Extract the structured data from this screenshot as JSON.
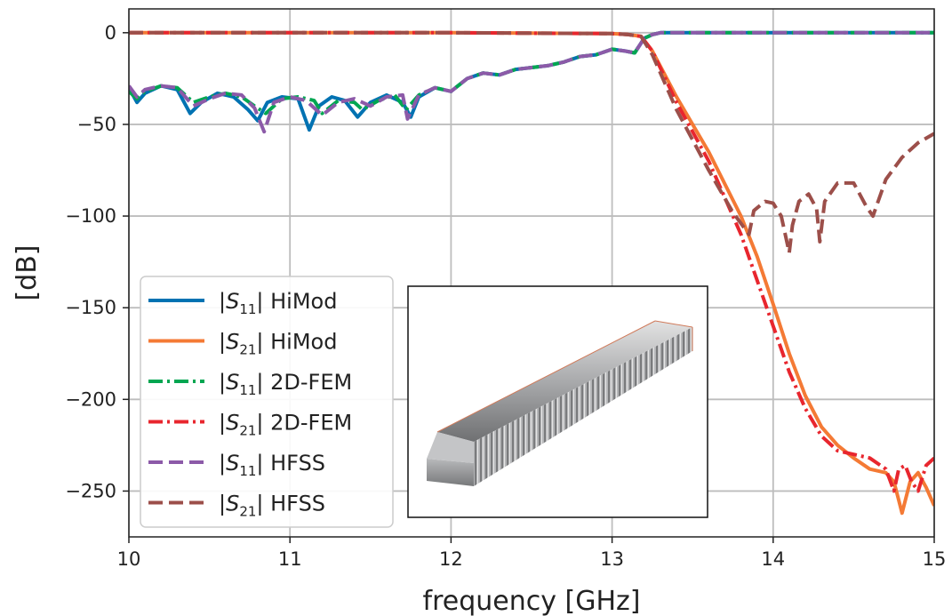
{
  "chart_data": {
    "type": "line",
    "xlabel": "frequency [GHz]",
    "ylabel": "[dB]",
    "xlim": [
      10,
      15
    ],
    "ylim": [
      -275,
      13
    ],
    "xticks": [
      10,
      11,
      12,
      13,
      14,
      15
    ],
    "yticks": [
      0,
      -50,
      -100,
      -150,
      -200,
      -250
    ],
    "ytick_labels": [
      "0",
      "−50",
      "−100",
      "−150",
      "−200",
      "−250"
    ],
    "grid": true,
    "legend_position": "lower-left",
    "series": [
      {
        "name": "|S11| HiMod",
        "legend_main": "|S",
        "legend_sub": "11",
        "legend_tail": "| HiMod",
        "color": "#0072b2",
        "style": "solid",
        "x": [
          10.0,
          10.05,
          10.1,
          10.2,
          10.3,
          10.38,
          10.45,
          10.55,
          10.65,
          10.74,
          10.8,
          10.86,
          10.95,
          11.05,
          11.12,
          11.18,
          11.26,
          11.34,
          11.42,
          11.5,
          11.6,
          11.7,
          11.75,
          11.8,
          11.9,
          12.0,
          12.1,
          12.2,
          12.3,
          12.4,
          12.5,
          12.6,
          12.7,
          12.8,
          12.9,
          13.0,
          13.08,
          13.14,
          13.2,
          13.25,
          13.3,
          13.5,
          14.0,
          14.5,
          15.0
        ],
        "y": [
          -30,
          -38,
          -33,
          -29,
          -31,
          -44,
          -38,
          -33,
          -35,
          -42,
          -48,
          -38,
          -35,
          -36,
          -53,
          -40,
          -35,
          -37,
          -46,
          -38,
          -34,
          -38,
          -46,
          -35,
          -30,
          -32,
          -25,
          -22,
          -23,
          -20,
          -19,
          -18,
          -16,
          -13,
          -12,
          -9,
          -10,
          -11,
          -3,
          -1,
          0,
          0,
          0,
          0,
          0
        ]
      },
      {
        "name": "|S21| HiMod",
        "legend_main": "|S",
        "legend_sub": "21",
        "legend_tail": "| HiMod",
        "color": "#f47a35",
        "style": "solid",
        "x": [
          10.0,
          12.0,
          13.0,
          13.1,
          13.18,
          13.25,
          13.4,
          13.6,
          13.8,
          13.9,
          14.0,
          14.1,
          14.2,
          14.3,
          14.4,
          14.5,
          14.6,
          14.7,
          14.75,
          14.78,
          14.8,
          14.85,
          14.9,
          14.95,
          15.0
        ],
        "y": [
          0,
          0,
          -0.5,
          -1,
          -2,
          -10,
          -35,
          -65,
          -100,
          -122,
          -148,
          -175,
          -198,
          -215,
          -225,
          -232,
          -238,
          -240,
          -245,
          -255,
          -262,
          -245,
          -240,
          -248,
          -258
        ]
      },
      {
        "name": "|S11| 2D-FEM",
        "legend_main": "|S",
        "legend_sub": "11",
        "legend_tail": "| 2D-FEM",
        "color": "#00a651",
        "style": "dashdot",
        "x": [
          10.0,
          10.05,
          10.1,
          10.2,
          10.3,
          10.4,
          10.5,
          10.6,
          10.7,
          10.78,
          10.85,
          10.95,
          11.05,
          11.15,
          11.2,
          11.3,
          11.4,
          11.45,
          11.55,
          11.65,
          11.72,
          11.8,
          11.9,
          12.0,
          12.1,
          12.2,
          12.3,
          12.4,
          12.5,
          12.6,
          12.7,
          12.8,
          12.9,
          13.0,
          13.08,
          13.14,
          13.2,
          13.25,
          13.3,
          13.5,
          14.0,
          14.5,
          15.0
        ],
        "y": [
          -32,
          -36,
          -32,
          -29,
          -30,
          -38,
          -35,
          -33,
          -35,
          -40,
          -44,
          -36,
          -35,
          -37,
          -44,
          -37,
          -38,
          -42,
          -37,
          -34,
          -42,
          -34,
          -30,
          -32,
          -25,
          -22,
          -23,
          -20,
          -19,
          -18,
          -16,
          -13,
          -12,
          -9,
          -10,
          -11,
          -3,
          -1,
          0,
          0,
          0,
          0,
          0
        ]
      },
      {
        "name": "|S21| 2D-FEM",
        "legend_main": "|S",
        "legend_sub": "21",
        "legend_tail": "| 2D-FEM",
        "color": "#e8262e",
        "style": "dashdot",
        "x": [
          10.0,
          12.0,
          13.0,
          13.1,
          13.18,
          13.25,
          13.4,
          13.6,
          13.8,
          13.9,
          14.0,
          14.1,
          14.2,
          14.3,
          14.4,
          14.5,
          14.6,
          14.7,
          14.75,
          14.78,
          14.82,
          14.86,
          14.9,
          14.95,
          15.0
        ],
        "y": [
          0,
          0,
          -0.5,
          -1,
          -2,
          -10,
          -38,
          -70,
          -110,
          -135,
          -160,
          -185,
          -205,
          -220,
          -228,
          -230,
          -232,
          -238,
          -250,
          -238,
          -236,
          -245,
          -250,
          -236,
          -232
        ]
      },
      {
        "name": "|S11| HFSS",
        "legend_main": "|S",
        "legend_sub": "11",
        "legend_tail": "| HFSS",
        "color": "#8c5aa8",
        "style": "dashed",
        "x": [
          10.0,
          10.05,
          10.1,
          10.2,
          10.3,
          10.4,
          10.5,
          10.6,
          10.7,
          10.78,
          10.84,
          10.9,
          11.0,
          11.1,
          11.2,
          11.3,
          11.4,
          11.5,
          11.6,
          11.7,
          11.73,
          11.8,
          11.9,
          12.0,
          12.1,
          12.2,
          12.3,
          12.4,
          12.5,
          12.6,
          12.7,
          12.8,
          12.9,
          13.0,
          13.08,
          13.14,
          13.2,
          13.25,
          13.3,
          13.5,
          14.0,
          14.5,
          15.0
        ],
        "y": [
          -29,
          -35,
          -31,
          -29,
          -30,
          -40,
          -36,
          -33,
          -34,
          -41,
          -54,
          -38,
          -35,
          -37,
          -45,
          -38,
          -36,
          -40,
          -35,
          -34,
          -47,
          -34,
          -30,
          -32,
          -25,
          -22,
          -23,
          -20,
          -19,
          -18,
          -16,
          -13,
          -12,
          -9,
          -10,
          -11,
          -3,
          -1,
          0,
          0,
          0,
          0,
          0
        ]
      },
      {
        "name": "|S21| HFSS",
        "legend_main": "|S",
        "legend_sub": "21",
        "legend_tail": "| HFSS",
        "color": "#9c4f4a",
        "style": "dashed",
        "x": [
          10.0,
          12.0,
          13.0,
          13.1,
          13.18,
          13.25,
          13.4,
          13.6,
          13.75,
          13.85,
          13.88,
          13.95,
          14.0,
          14.05,
          14.1,
          14.12,
          14.16,
          14.22,
          14.27,
          14.29,
          14.32,
          14.4,
          14.5,
          14.58,
          14.62,
          14.7,
          14.8,
          14.9,
          15.0
        ],
        "y": [
          0,
          0,
          -0.5,
          -1,
          -2,
          -12,
          -42,
          -75,
          -98,
          -110,
          -97,
          -92,
          -93,
          -100,
          -120,
          -105,
          -92,
          -88,
          -96,
          -114,
          -92,
          -82,
          -82,
          -95,
          -100,
          -80,
          -68,
          -60,
          -55
        ]
      }
    ]
  },
  "inset": {
    "image": "corrugated-waveguide-filter-3d-render"
  }
}
